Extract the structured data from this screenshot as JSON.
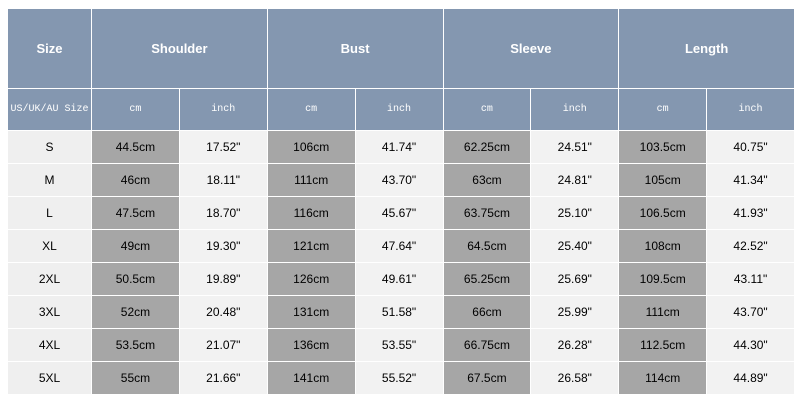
{
  "header": {
    "columns": [
      "Size",
      "Shoulder",
      "Bust",
      "Sleeve",
      "Length"
    ]
  },
  "subheader": [
    "US/UK/AU Size",
    "cm",
    "inch",
    "cm",
    "inch",
    "cm",
    "inch",
    "cm",
    "inch"
  ],
  "table": {
    "rows": [
      [
        "S",
        "44.5cm",
        "17.52\"",
        "106cm",
        "41.74\"",
        "62.25cm",
        "24.51\"",
        "103.5cm",
        "40.75\""
      ],
      [
        "M",
        "46cm",
        "18.11\"",
        "111cm",
        "43.70\"",
        "63cm",
        "24.81\"",
        "105cm",
        "41.34\""
      ],
      [
        "L",
        "47.5cm",
        "18.70\"",
        "116cm",
        "45.67\"",
        "63.75cm",
        "25.10\"",
        "106.5cm",
        "41.93\""
      ],
      [
        "XL",
        "49cm",
        "19.30\"",
        "121cm",
        "47.64\"",
        "64.5cm",
        "25.40\"",
        "108cm",
        "42.52\""
      ],
      [
        "2XL",
        "50.5cm",
        "19.89\"",
        "126cm",
        "49.61\"",
        "65.25cm",
        "25.69\"",
        "109.5cm",
        "43.11\""
      ],
      [
        "3XL",
        "52cm",
        "20.48\"",
        "131cm",
        "51.58\"",
        "66cm",
        "25.99\"",
        "111cm",
        "43.70\""
      ],
      [
        "4XL",
        "53.5cm",
        "21.07\"",
        "136cm",
        "53.55\"",
        "66.75cm",
        "26.28\"",
        "112.5cm",
        "44.30\""
      ],
      [
        "5XL",
        "55cm",
        "21.66\"",
        "141cm",
        "55.52\"",
        "67.5cm",
        "26.58\"",
        "114cm",
        "44.89\""
      ]
    ]
  }
}
